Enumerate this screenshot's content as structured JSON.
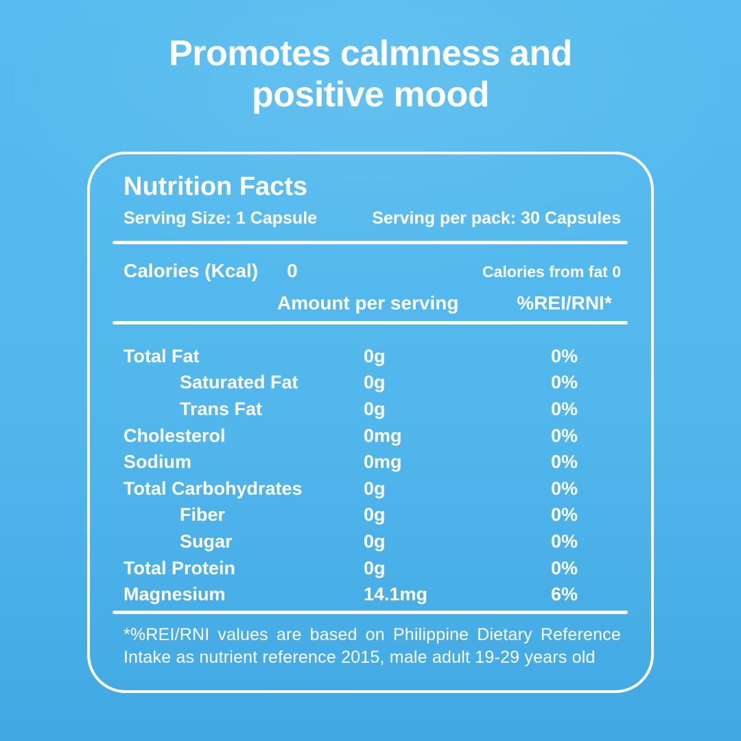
{
  "title": {
    "line1": "Promotes calmness and",
    "line2": "positive mood"
  },
  "nutrition_label": {
    "heading": "Nutrition Facts",
    "serving_size": "Serving Size: 1 Capsule",
    "serving_per_pack": "Serving per pack: 30 Capsules",
    "calories": {
      "label": "Calories (Kcal)",
      "value": "0",
      "from_fat": "Calories from fat 0"
    },
    "column_headers": {
      "amount": "Amount per serving",
      "percent": "%REI/RNI*"
    },
    "rows": [
      {
        "name": "Total Fat",
        "amount": "0g",
        "percent": "0%",
        "indent": false
      },
      {
        "name": "Saturated Fat",
        "amount": "0g",
        "percent": "0%",
        "indent": true
      },
      {
        "name": "Trans Fat",
        "amount": "0g",
        "percent": "0%",
        "indent": true
      },
      {
        "name": "Cholesterol",
        "amount": "0mg",
        "percent": "0%",
        "indent": false
      },
      {
        "name": "Sodium",
        "amount": "0mg",
        "percent": "0%",
        "indent": false
      },
      {
        "name": "Total Carbohydrates",
        "amount": "0g",
        "percent": "0%",
        "indent": false
      },
      {
        "name": "Fiber",
        "amount": "0g",
        "percent": "0%",
        "indent": true
      },
      {
        "name": "Sugar",
        "amount": "0g",
        "percent": "0%",
        "indent": true
      },
      {
        "name": "Total Protein",
        "amount": "0g",
        "percent": "0%",
        "indent": false
      },
      {
        "name": "Magnesium",
        "amount": "14.1mg",
        "percent": "6%",
        "indent": false
      }
    ],
    "footnote": "*%REI/RNI values are based on Philippine Dietary Reference Intake as nutrient reference 2015, male adult 19-29 years old"
  },
  "colors": {
    "background_top": "#56BCEF",
    "background_bottom": "#42A8E3",
    "text": "#FFFFFF",
    "card_border": "#FFFFFF"
  }
}
